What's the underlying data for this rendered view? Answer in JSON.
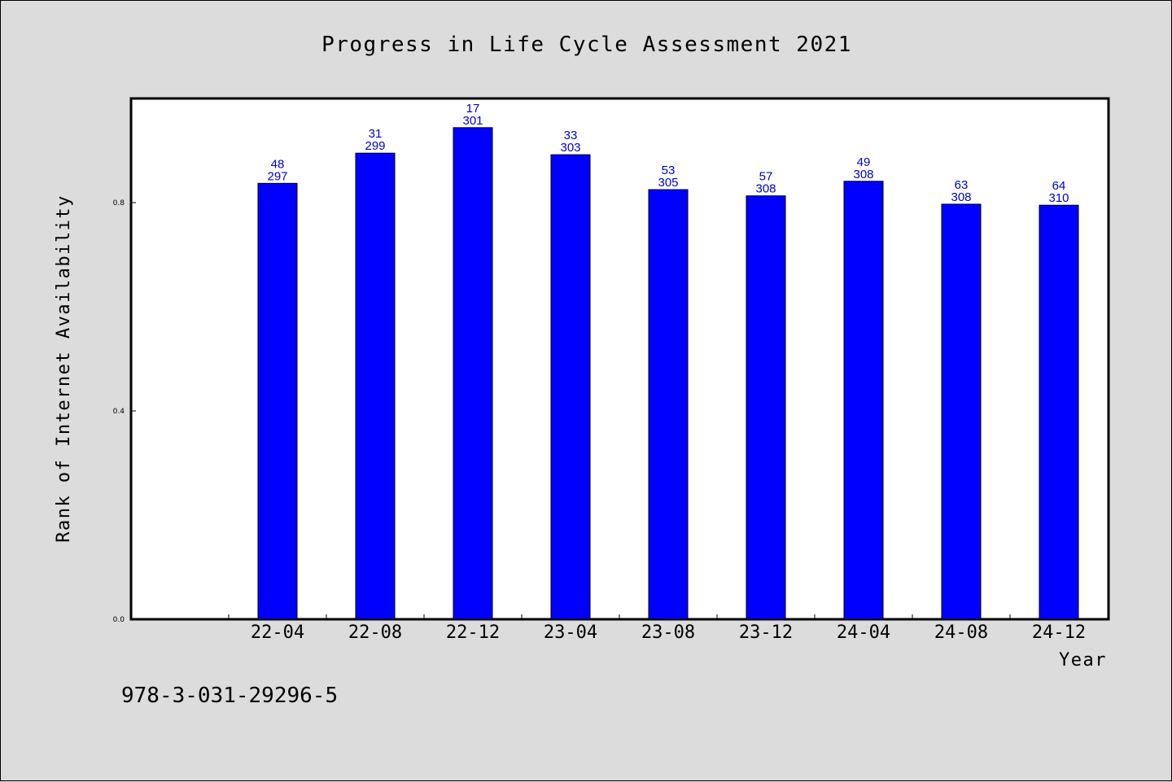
{
  "chart_data": {
    "type": "bar",
    "title": "Progress in Life Cycle Assessment 2021",
    "xlabel": "Year",
    "ylabel": "Rank of Internet Availability",
    "categories": [
      "22-04",
      "22-08",
      "22-12",
      "23-04",
      "23-08",
      "23-12",
      "24-04",
      "24-08",
      "24-12"
    ],
    "values": [
      0.837,
      0.895,
      0.944,
      0.892,
      0.825,
      0.813,
      0.841,
      0.797,
      0.795
    ],
    "labels_top": [
      "48",
      "31",
      "17",
      "33",
      "53",
      "57",
      "49",
      "63",
      "64"
    ],
    "labels_bottom": [
      "297",
      "299",
      "301",
      "303",
      "305",
      "308",
      "308",
      "308",
      "310"
    ],
    "yticks": [
      "0.0",
      "0.4",
      "0.8"
    ],
    "ytick_values": [
      0.0,
      0.4,
      0.8
    ],
    "ylim": [
      0,
      1.0
    ],
    "grid": false,
    "bar_color": "#0000ff",
    "label_color": "#0000cc"
  },
  "footer": {
    "isbn": "978-3-031-29296-5"
  }
}
